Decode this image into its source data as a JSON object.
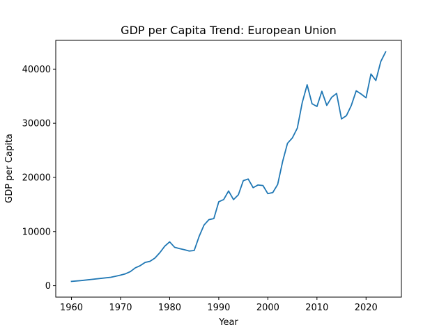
{
  "chart_data": {
    "type": "line",
    "title": "GDP per Capita Trend: European Union",
    "xlabel": "Year",
    "ylabel": "GDP per Capita",
    "xlim": [
      1956.8,
      2027.2
    ],
    "ylim": [
      -2110,
      45310
    ],
    "grid": false,
    "x_ticks": [
      1960,
      1970,
      1980,
      1990,
      2000,
      2010,
      2020
    ],
    "y_ticks": [
      0,
      10000,
      20000,
      30000,
      40000
    ],
    "line_color": "#1f77b4",
    "series": [
      {
        "x": [
          1960,
          1962,
          1964,
          1966,
          1968,
          1969,
          1970,
          1971,
          1972,
          1973,
          1974,
          1975,
          1976,
          1977,
          1978,
          1979,
          1980,
          1981,
          1982,
          1983,
          1984,
          1985,
          1986,
          1987,
          1988,
          1989,
          1990,
          1991,
          1992,
          1993,
          1994,
          1995,
          1996,
          1997,
          1998,
          1999,
          2000,
          2001,
          2002,
          2003,
          2004,
          2005,
          2006,
          2007,
          2008,
          2009,
          2010,
          2011,
          2012,
          2013,
          2014,
          2015,
          2016,
          2017,
          2018,
          2019,
          2020,
          2021,
          2022,
          2023,
          2024
        ],
        "y": [
          800,
          950,
          1150,
          1350,
          1550,
          1750,
          1950,
          2200,
          2600,
          3300,
          3700,
          4300,
          4500,
          5100,
          6100,
          7300,
          8100,
          7100,
          6850,
          6650,
          6400,
          6500,
          9100,
          11200,
          12200,
          12400,
          15500,
          15900,
          17500,
          15900,
          16800,
          19400,
          19700,
          18100,
          18600,
          18500,
          17000,
          17200,
          18700,
          22900,
          26300,
          27300,
          29100,
          33800,
          37100,
          33600,
          33100,
          35900,
          33300,
          34800,
          35500,
          30800,
          31400,
          33300,
          36000,
          35400,
          34700,
          39100,
          37900,
          41400,
          43200
        ]
      }
    ]
  }
}
